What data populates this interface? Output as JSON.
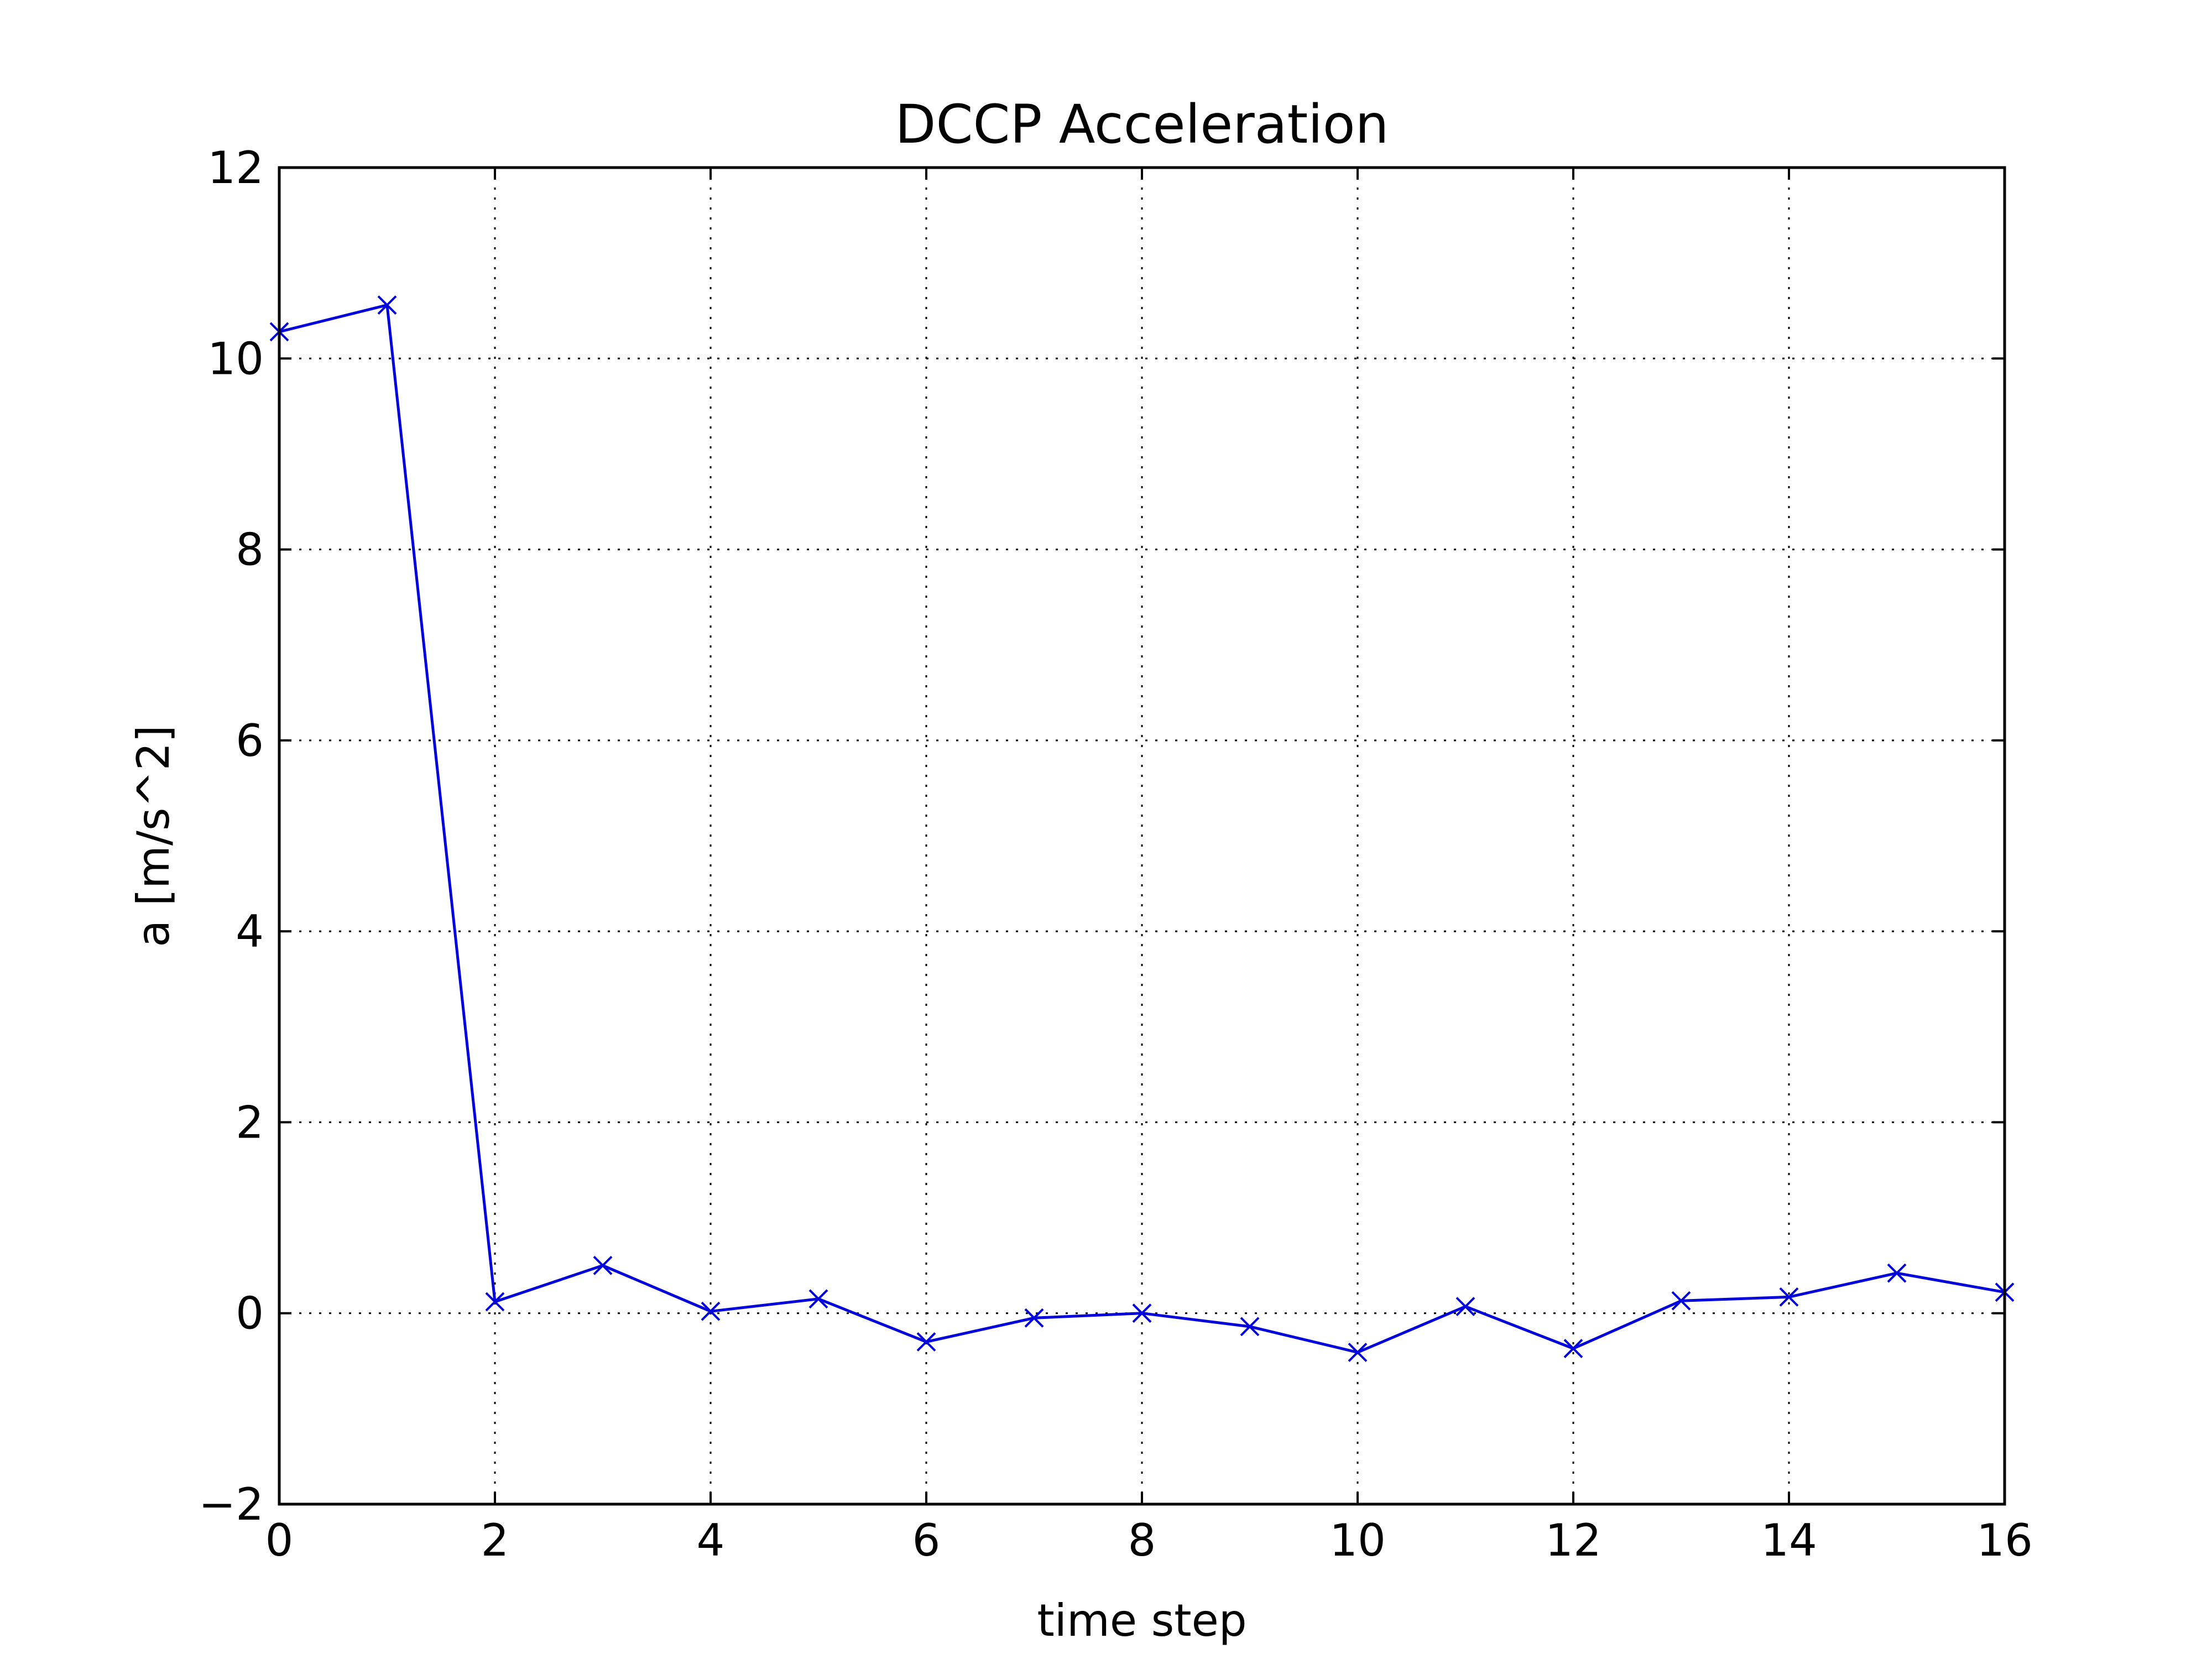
{
  "chart_data": {
    "type": "line",
    "title": "DCCP Acceleration",
    "xlabel": "time step",
    "ylabel": "a [m/s^2]",
    "xlim": [
      0,
      16
    ],
    "ylim": [
      -2,
      12
    ],
    "xticks": [
      0,
      2,
      4,
      6,
      8,
      10,
      12,
      14,
      16
    ],
    "xtick_labels": [
      "0",
      "2",
      "4",
      "6",
      "8",
      "10",
      "12",
      "14",
      "16"
    ],
    "yticks": [
      -2,
      0,
      2,
      4,
      6,
      8,
      10,
      12
    ],
    "ytick_labels": [
      "−2",
      "0",
      "2",
      "4",
      "6",
      "8",
      "10",
      "12"
    ],
    "grid": true,
    "legend": "none",
    "series": [
      {
        "color": "#0000dd",
        "marker": "x",
        "x": [
          0,
          1,
          2,
          3,
          4,
          5,
          6,
          7,
          8,
          9,
          10,
          11,
          12,
          13,
          14,
          15,
          16
        ],
        "y": [
          10.28,
          10.56,
          0.12,
          0.5,
          0.02,
          0.15,
          -0.3,
          -0.05,
          0.0,
          -0.14,
          -0.41,
          0.07,
          -0.37,
          0.13,
          0.17,
          0.42,
          0.22
        ]
      }
    ]
  }
}
